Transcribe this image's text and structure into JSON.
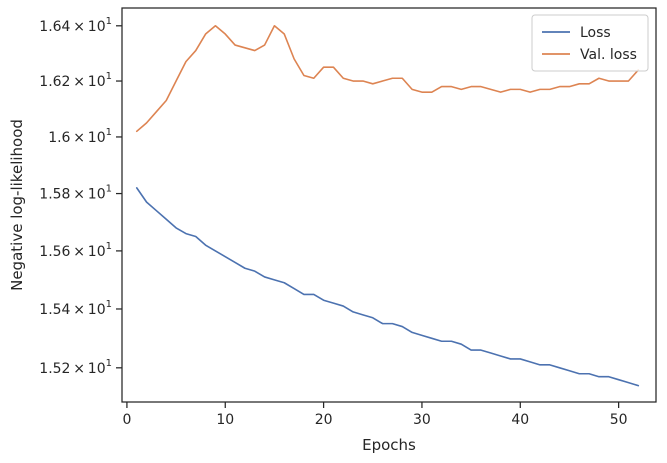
{
  "chart_data": {
    "type": "line",
    "xlabel": "Epochs",
    "ylabel": "Negative log-likelihood",
    "xlim": [
      -0.5,
      53.8
    ],
    "ylim": [
      15.085,
      16.465
    ],
    "y_scale": "log",
    "grid": false,
    "legend_position": "top-right",
    "x_ticks": [
      {
        "value": 0,
        "label": "0"
      },
      {
        "value": 10,
        "label": "10"
      },
      {
        "value": 20,
        "label": "20"
      },
      {
        "value": 30,
        "label": "30"
      },
      {
        "value": 40,
        "label": "40"
      },
      {
        "value": 50,
        "label": "50"
      }
    ],
    "y_ticks": [
      {
        "value": 15.2,
        "mantissa": "1.52",
        "times": "×",
        "base": "10",
        "exponent": "1"
      },
      {
        "value": 15.4,
        "mantissa": "1.54",
        "times": "×",
        "base": "10",
        "exponent": "1"
      },
      {
        "value": 15.6,
        "mantissa": "1.56",
        "times": "×",
        "base": "10",
        "exponent": "1"
      },
      {
        "value": 15.8,
        "mantissa": "1.58",
        "times": "×",
        "base": "10",
        "exponent": "1"
      },
      {
        "value": 16.0,
        "mantissa": "1.6",
        "times": "×",
        "base": "10",
        "exponent": "1"
      },
      {
        "value": 16.2,
        "mantissa": "1.62",
        "times": "×",
        "base": "10",
        "exponent": "1"
      },
      {
        "value": 16.4,
        "mantissa": "1.64",
        "times": "×",
        "base": "10",
        "exponent": "1"
      }
    ],
    "x": [
      1,
      2,
      3,
      4,
      5,
      6,
      7,
      8,
      9,
      10,
      11,
      12,
      13,
      14,
      15,
      16,
      17,
      18,
      19,
      20,
      21,
      22,
      23,
      24,
      25,
      26,
      27,
      28,
      29,
      30,
      31,
      32,
      33,
      34,
      35,
      36,
      37,
      38,
      39,
      40,
      41,
      42,
      43,
      44,
      45,
      46,
      47,
      48,
      49,
      50,
      51,
      52
    ],
    "series": [
      {
        "name": "Loss",
        "color": "#4c72b0",
        "values": [
          15.82,
          15.77,
          15.74,
          15.71,
          15.68,
          15.66,
          15.65,
          15.62,
          15.6,
          15.58,
          15.56,
          15.54,
          15.53,
          15.51,
          15.5,
          15.49,
          15.47,
          15.45,
          15.45,
          15.43,
          15.42,
          15.41,
          15.39,
          15.38,
          15.37,
          15.35,
          15.35,
          15.34,
          15.32,
          15.31,
          15.3,
          15.29,
          15.29,
          15.28,
          15.26,
          15.26,
          15.25,
          15.24,
          15.23,
          15.23,
          15.22,
          15.21,
          15.21,
          15.2,
          15.19,
          15.18,
          15.18,
          15.17,
          15.17,
          15.16,
          15.15,
          15.14
        ]
      },
      {
        "name": "Val. loss",
        "color": "#dd8452",
        "values": [
          16.02,
          16.05,
          16.09,
          16.13,
          16.2,
          16.27,
          16.31,
          16.37,
          16.4,
          16.37,
          16.33,
          16.32,
          16.31,
          16.33,
          16.4,
          16.37,
          16.28,
          16.22,
          16.21,
          16.25,
          16.25,
          16.21,
          16.2,
          16.2,
          16.19,
          16.2,
          16.21,
          16.21,
          16.17,
          16.16,
          16.16,
          16.18,
          16.18,
          16.17,
          16.18,
          16.18,
          16.17,
          16.16,
          16.17,
          16.17,
          16.16,
          16.17,
          16.17,
          16.18,
          16.18,
          16.19,
          16.19,
          16.21,
          16.2,
          16.2,
          16.2,
          16.24
        ]
      }
    ]
  }
}
